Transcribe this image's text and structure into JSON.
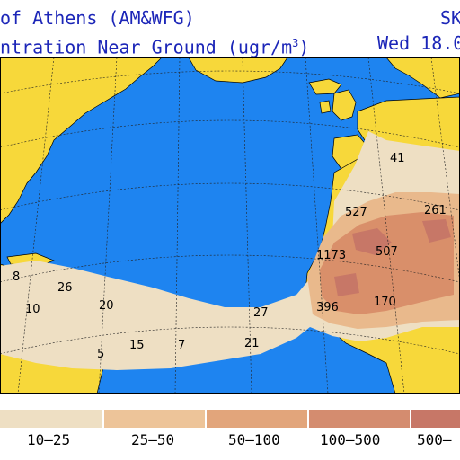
{
  "header": {
    "title_left": "of Athens (AM&WFG)",
    "title_right": "SK",
    "subtitle_left": "ntration Near Ground (ugr/m",
    "subtitle_sup": "3",
    "subtitle_close": ")",
    "subtitle_right": "Wed 18.0"
  },
  "colors": {
    "ocean": "#1e84f0",
    "land": "#f7d83a",
    "dust_low": "#eedfc3",
    "dust_mid": "#e9b98c",
    "dust_high": "#d98f6a",
    "dust_max": "#c77767",
    "title": "#1c26b8"
  },
  "map_labels": [
    {
      "text": "41"
    },
    {
      "text": "527"
    },
    {
      "text": "261"
    },
    {
      "text": "1173"
    },
    {
      "text": "507"
    },
    {
      "text": "396"
    },
    {
      "text": "170"
    },
    {
      "text": "27"
    },
    {
      "text": "21"
    },
    {
      "text": "20"
    },
    {
      "text": "26"
    },
    {
      "text": "8"
    },
    {
      "text": "10"
    },
    {
      "text": "15"
    },
    {
      "text": "7"
    },
    {
      "text": "5"
    }
  ],
  "legend": {
    "items": [
      {
        "label": "10–25",
        "color": "#eedfc3"
      },
      {
        "label": "25–50",
        "color": "#edc499"
      },
      {
        "label": "50–100",
        "color": "#e2a57b"
      },
      {
        "label": "100–500",
        "color": "#d48c6f"
      },
      {
        "label": "500–",
        "color": "#c77767"
      }
    ]
  }
}
